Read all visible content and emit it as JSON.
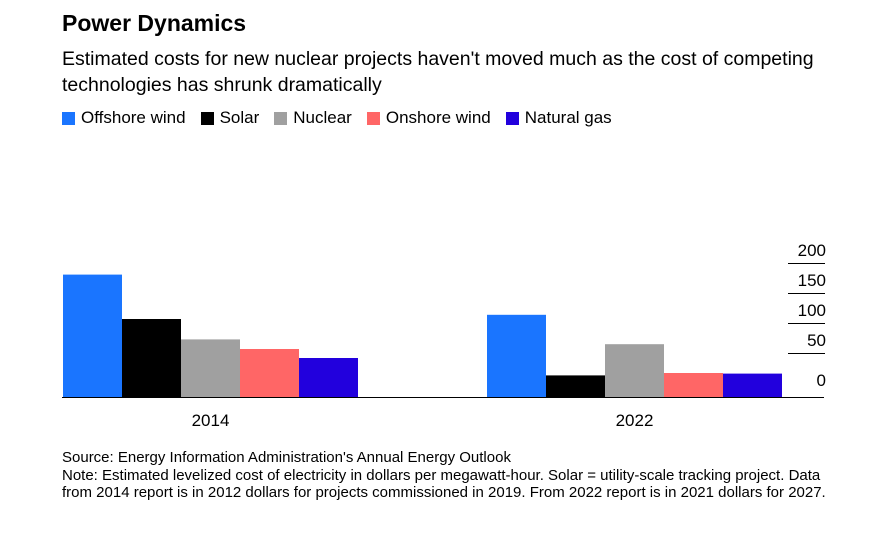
{
  "title": "Power Dynamics",
  "subtitle": "Estimated costs for new nuclear projects haven't moved much as the cost of competing technologies has shrunk dramatically",
  "source": "Source: Energy Information Administration's Annual Energy Outlook",
  "note": "Note: Estimated levelized cost of electricity in dollars per megawatt-hour. Solar = utility-scale tracking project. Data from 2014 report is in 2012 dollars for projects commissioned in 2019. From 2022 report is in 2021 dollars for 2027.",
  "chart_data": {
    "type": "bar",
    "categories": [
      "2014",
      "2022"
    ],
    "series": [
      {
        "name": "Offshore wind",
        "color": "#1a75ff",
        "values": [
          204,
          137
        ]
      },
      {
        "name": "Solar",
        "color": "#000000",
        "values": [
          130,
          36
        ]
      },
      {
        "name": "Nuclear",
        "color": "#a0a0a0",
        "values": [
          96,
          88
        ]
      },
      {
        "name": "Onshore wind",
        "color": "#ff6666",
        "values": [
          80,
          40
        ]
      },
      {
        "name": "Natural gas",
        "color": "#2200dd",
        "values": [
          65,
          39
        ]
      }
    ],
    "yticks": [
      0,
      50,
      100,
      150,
      200
    ],
    "ylim": [
      0,
      215
    ],
    "grid": false,
    "legend": "top-left",
    "yaxis_side": "right"
  }
}
